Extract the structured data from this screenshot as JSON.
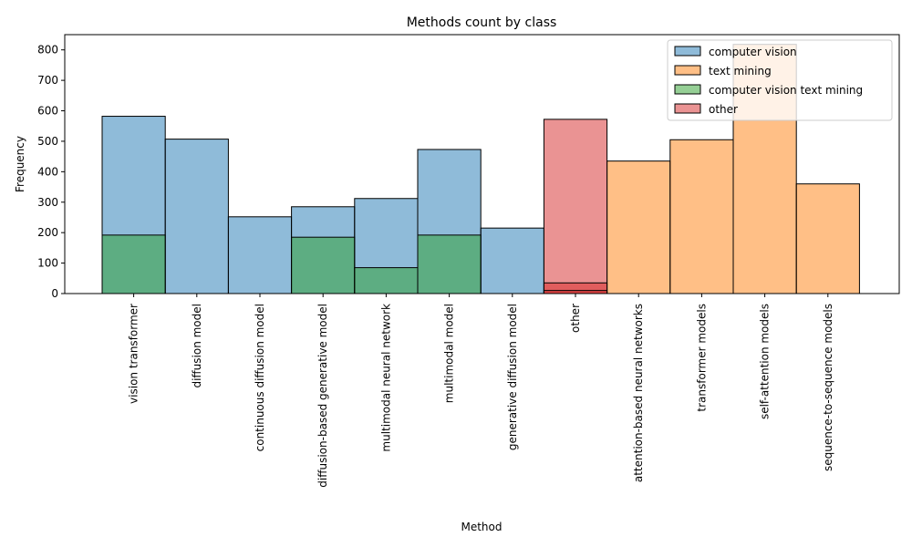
{
  "chart_data": {
    "type": "bar",
    "title": "Methods count by class",
    "xlabel": "Method",
    "ylabel": "Frequency",
    "ylim": [
      0,
      850
    ],
    "yticks": [
      0,
      100,
      200,
      300,
      400,
      500,
      600,
      700,
      800
    ],
    "grid": false,
    "legend_position": "top-right",
    "categories": [
      "vision transformer",
      "diffusion model",
      "continuous diffusion model",
      "diffusion-based generative model",
      "multimodal neural network",
      "multimodal model",
      "generative diffusion model",
      "other",
      "attention-based neural networks",
      "transformer models",
      "self-attention models",
      "sequence-to-sequence models"
    ],
    "series": [
      {
        "name": "computer vision",
        "color": "#1f77b4",
        "values": [
          582,
          507,
          252,
          285,
          312,
          473,
          215,
          0,
          0,
          0,
          0,
          0
        ]
      },
      {
        "name": "text mining",
        "color": "#ff7f0e",
        "values": [
          0,
          0,
          0,
          0,
          0,
          0,
          0,
          0,
          435,
          505,
          818,
          360
        ]
      },
      {
        "name": "computer vision text mining",
        "color": "#2ca02c",
        "values": [
          192,
          0,
          0,
          185,
          85,
          192,
          0,
          0,
          0,
          0,
          0,
          0
        ]
      },
      {
        "name": "other",
        "color": "#d62728",
        "values": [
          0,
          0,
          0,
          0,
          0,
          0,
          0,
          572,
          0,
          0,
          0,
          0
        ]
      }
    ],
    "overlay_bars": [
      {
        "category": "other",
        "color": "#d62728",
        "values": [
          35,
          10
        ]
      }
    ]
  }
}
